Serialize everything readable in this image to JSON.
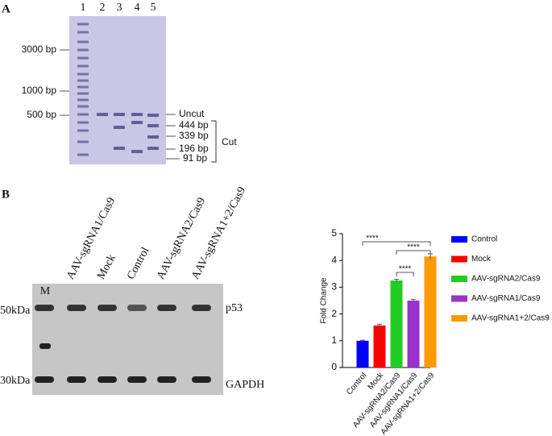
{
  "panel_a": {
    "letter": "A",
    "lanes": [
      "1",
      "2",
      "3",
      "4",
      "5"
    ],
    "markers": [
      "3000 bp",
      "1000 bp",
      "500 bp"
    ],
    "bands": [
      "Uncut",
      "444 bp",
      "339 bp",
      "196 bp",
      "91 bp"
    ],
    "cut_label": "Cut"
  },
  "panel_b": {
    "letter": "B",
    "lanes": [
      "M",
      "AAV-sgRNA1/Cas9",
      "Mock",
      "Control",
      "AAV-sgRNA2/Cas9",
      "AAV-sgRNA1+2/Cas9"
    ],
    "sizes": [
      "50kDa",
      "30kDa"
    ],
    "proteins": [
      "p53",
      "GAPDH"
    ]
  },
  "chart_data": {
    "type": "bar",
    "ylabel": "Fold Change",
    "categories": [
      "Control",
      "Mock",
      "AAV-sgRNA2/Cas9",
      "AAV-sgRNA1/Cas9",
      "AAV-sgRNA1+2/Cas9"
    ],
    "values": [
      1.0,
      1.57,
      3.25,
      2.5,
      4.15
    ],
    "errors": [
      0.02,
      0.05,
      0.05,
      0.05,
      0.1
    ],
    "colors": [
      "#0000ff",
      "#ff0000",
      "#22cc22",
      "#9933cc",
      "#ff9900"
    ],
    "ylim": [
      0,
      5
    ],
    "yticks": [
      0,
      1,
      2,
      3,
      4,
      5
    ],
    "significance": [
      "****",
      "****",
      "****"
    ]
  }
}
